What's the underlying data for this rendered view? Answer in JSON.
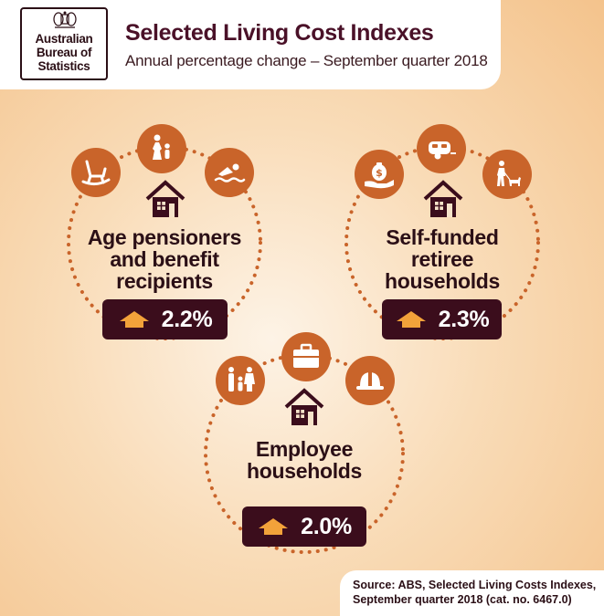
{
  "logo": {
    "lines": [
      "Australian",
      "Bureau of",
      "Statistics"
    ]
  },
  "header": {
    "title": "Selected Living Cost Indexes",
    "subtitle": "Annual percentage change – September quarter 2018"
  },
  "groups": [
    {
      "label_lines": [
        "Age pensioners",
        "and benefit",
        "recipients"
      ],
      "change": "2.2%",
      "change_pct": 2.2,
      "icons": [
        "rocking-chair-icon",
        "family-icon",
        "swimmer-icon",
        "house-icon",
        "arrow-up-icon"
      ]
    },
    {
      "label_lines": [
        "Self-funded",
        "retiree",
        "households"
      ],
      "change": "2.3%",
      "change_pct": 2.3,
      "icons": [
        "money-bag-hand-icon",
        "caravan-icon",
        "walking-dog-icon",
        "house-icon",
        "arrow-up-icon"
      ]
    },
    {
      "label_lines": [
        "Employee",
        "households"
      ],
      "change": "2.0%",
      "change_pct": 2.0,
      "icons": [
        "family-children-icon",
        "briefcase-icon",
        "hard-hat-icon",
        "house-icon",
        "arrow-up-icon"
      ]
    }
  ],
  "source": {
    "lines": [
      "Source: ABS, Selected Living Costs Indexes,",
      "September quarter 2018 (cat. no. 6467.0)"
    ]
  },
  "colors": {
    "accent": "#c9642a",
    "dark": "#3b0d1c",
    "title": "#4a1128",
    "arrow": "#f2a23a"
  }
}
